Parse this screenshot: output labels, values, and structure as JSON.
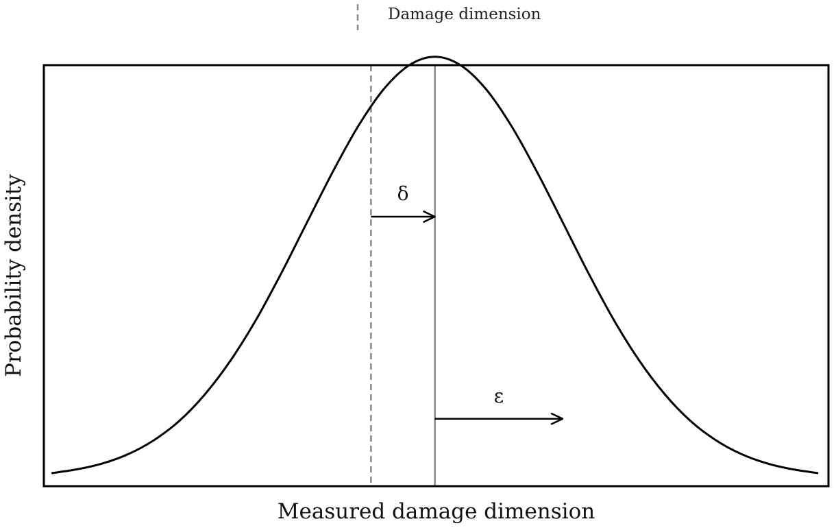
{
  "chart_data": {
    "type": "line",
    "title": "",
    "xlabel": "Measured damage dimension",
    "ylabel": "Probability density",
    "grid": false,
    "legend": {
      "placement": "top-center",
      "entries": [
        {
          "label": "Damage dimension",
          "style": "dashed",
          "color": "#888888"
        }
      ]
    },
    "xlim": [
      -3.06,
      3.08
    ],
    "ylim": [
      -0.02,
      0.98
    ],
    "series": [
      {
        "style": "solid",
        "color": "#000000",
        "x": [
          -3.0,
          -2.8,
          -2.6,
          -2.4,
          -2.2,
          -2.0,
          -1.8,
          -1.6,
          -1.4,
          -1.2,
          -1.0,
          -0.8,
          -0.6,
          -0.4,
          -0.2,
          0.0,
          0.2,
          0.4,
          0.6,
          0.8,
          1.0,
          1.2,
          1.4,
          1.6,
          1.8,
          2.0,
          2.2,
          2.4,
          2.6,
          2.8,
          3.0
        ],
        "y": [
          0.011,
          0.02,
          0.034,
          0.056,
          0.089,
          0.135,
          0.198,
          0.278,
          0.375,
          0.487,
          0.607,
          0.726,
          0.835,
          0.923,
          0.98,
          1.0,
          0.98,
          0.923,
          0.835,
          0.726,
          0.607,
          0.487,
          0.375,
          0.278,
          0.198,
          0.135,
          0.089,
          0.056,
          0.034,
          0.02,
          0.011
        ]
      }
    ],
    "vlines": [
      {
        "x": -0.5,
        "style": "dashed",
        "color": "#888888",
        "meaning": "Damage dimension"
      },
      {
        "x": 0.0,
        "style": "solid",
        "color": "#888888"
      }
    ],
    "annotations": [
      {
        "text": "δ",
        "arrow_from_x": -0.5,
        "arrow_to_x": 0.0,
        "y": 0.62
      },
      {
        "text": "ε",
        "arrow_from_x": 0.0,
        "arrow_to_x": 1.0,
        "y": 0.14
      }
    ]
  }
}
